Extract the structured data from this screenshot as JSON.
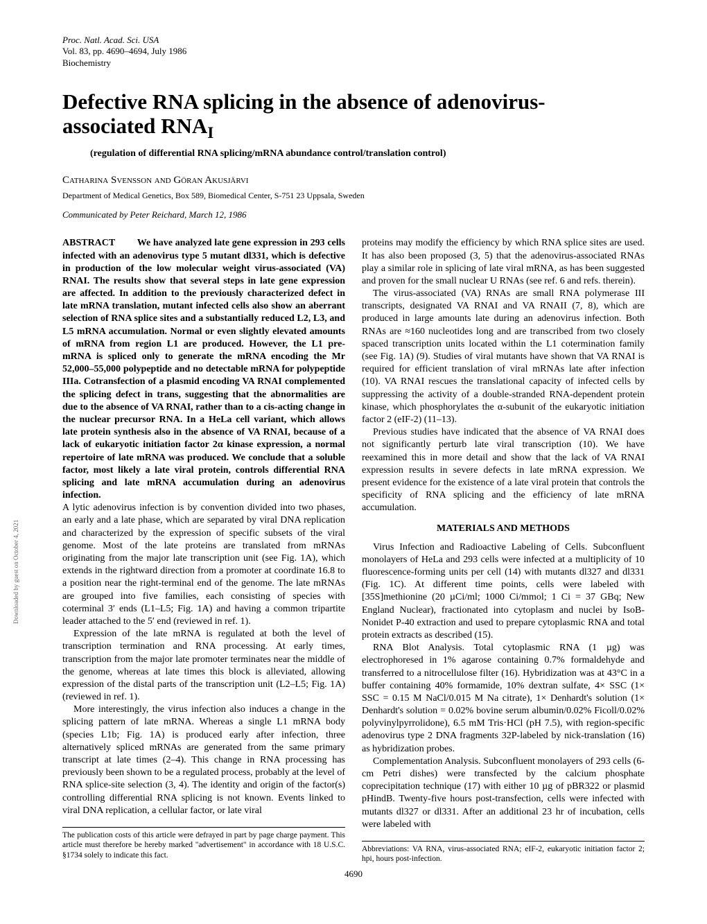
{
  "header": {
    "line1": "Proc. Natl. Acad. Sci. USA",
    "line2": "Vol. 83, pp. 4690–4694, July 1986",
    "line3": "Biochemistry"
  },
  "title_line1": "Defective RNA splicing in the absence of adenovirus-",
  "title_line2": "associated RNA",
  "title_subscript": "I",
  "subtitle": "(regulation of differential RNA splicing/mRNA abundance control/translation control)",
  "authors": "Catharina Svensson and Göran Akusjärvi",
  "affiliation": "Department of Medical Genetics, Box 589, Biomedical Center, S-751 23 Uppsala, Sweden",
  "communicated": "Communicated by Peter Reichard, March 12, 1986",
  "abstract_label": "ABSTRACT",
  "abstract_text": "We have analyzed late gene expression in 293 cells infected with an adenovirus type 5 mutant dl331, which is defective in production of the low molecular weight virus-associated (VA) RNAI. The results show that several steps in late gene expression are affected. In addition to the previously characterized defect in late mRNA translation, mutant infected cells also show an aberrant selection of RNA splice sites and a substantially reduced L2, L3, and L5 mRNA accumulation. Normal or even slightly elevated amounts of mRNA from region L1 are produced. However, the L1 pre-mRNA is spliced only to generate the mRNA encoding the Mr 52,000–55,000 polypeptide and no detectable mRNA for polypeptide IIIa. Cotransfection of a plasmid encoding VA RNAI complemented the splicing defect in trans, suggesting that the abnormalities are due to the absence of VA RNAI, rather than to a cis-acting change in the nuclear precursor RNA. In a HeLa cell variant, which allows late protein synthesis also in the absence of VA RNAI, because of a lack of eukaryotic initiation factor 2α kinase expression, a normal repertoire of late mRNA was produced. We conclude that a soluble factor, most likely a late viral protein, controls differential RNA splicing and late mRNA accumulation during an adenovirus infection.",
  "col1_paras": [
    "A lytic adenovirus infection is by convention divided into two phases, an early and a late phase, which are separated by viral DNA replication and characterized by the expression of specific subsets of the viral genome. Most of the late proteins are translated from mRNAs originating from the major late transcription unit (see Fig. 1A), which extends in the rightward direction from a promoter at coordinate 16.8 to a position near the right-terminal end of the genome. The late mRNAs are grouped into five families, each consisting of species with coterminal 3′ ends (L1–L5; Fig. 1A) and having a common tripartite leader attached to the 5′ end (reviewed in ref. 1).",
    "Expression of the late mRNA is regulated at both the level of transcription termination and RNA processing. At early times, transcription from the major late promoter terminates near the middle of the genome, whereas at late times this block is alleviated, allowing expression of the distal parts of the transcription unit (L2–L5; Fig. 1A) (reviewed in ref. 1).",
    "More interestingly, the virus infection also induces a change in the splicing pattern of late mRNA. Whereas a single L1 mRNA body (species L1b; Fig. 1A) is produced early after infection, three alternatively spliced mRNAs are generated from the same primary transcript at late times (2–4). This change in RNA processing has previously been shown to be a regulated process, probably at the level of RNA splice-site selection (3, 4). The identity and origin of the factor(s) controlling differential RNA splicing is not known. Events linked to viral DNA replication, a cellular factor, or late viral"
  ],
  "col1_footnote": "The publication costs of this article were defrayed in part by page charge payment. This article must therefore be hereby marked \"advertisement\" in accordance with 18 U.S.C. §1734 solely to indicate this fact.",
  "col2_intro_paras": [
    "proteins may modify the efficiency by which RNA splice sites are used. It has also been proposed (3, 5) that the adenovirus-associated RNAs play a similar role in splicing of late viral mRNA, as has been suggested and proven for the small nuclear U RNAs (see ref. 6 and refs. therein).",
    "The virus-associated (VA) RNAs are small RNA polymerase III transcripts, designated VA RNAI and VA RNAII (7, 8), which are produced in large amounts late during an adenovirus infection. Both RNAs are ≈160 nucleotides long and are transcribed from two closely spaced transcription units located within the L1 cotermination family (see Fig. 1A) (9). Studies of viral mutants have shown that VA RNAI is required for efficient translation of viral mRNAs late after infection (10). VA RNAI rescues the translational capacity of infected cells by suppressing the activity of a double-stranded RNA-dependent protein kinase, which phosphorylates the α-subunit of the eukaryotic initiation factor 2 (eIF-2) (11–13).",
    "Previous studies have indicated that the absence of VA RNAI does not significantly perturb late viral transcription (10). We have reexamined this in more detail and show that the lack of VA RNAI expression results in severe defects in late mRNA expression. We present evidence for the existence of a late viral protein that controls the specificity of RNA splicing and the efficiency of late mRNA accumulation."
  ],
  "section_materials": "MATERIALS AND METHODS",
  "col2_methods_paras": [
    "Virus Infection and Radioactive Labeling of Cells. Subconfluent monolayers of HeLa and 293 cells were infected at a multiplicity of 10 fluorescence-forming units per cell (14) with mutants dl327 and dl331 (Fig. 1C). At different time points, cells were labeled with [35S]methionine (20 µCi/ml; 1000 Ci/mmol; 1 Ci = 37 GBq; New England Nuclear), fractionated into cytoplasm and nuclei by IsoB-Nonidet P-40 extraction and used to prepare cytoplasmic RNA and total protein extracts as described (15).",
    "RNA Blot Analysis. Total cytoplasmic RNA (1 µg) was electrophoresed in 1% agarose containing 0.7% formaldehyde and transferred to a nitrocellulose filter (16). Hybridization was at 43°C in a buffer containing 40% formamide, 10% dextran sulfate, 4× SSC (1× SSC = 0.15 M NaCl/0.015 M Na citrate), 1× Denhardt's solution (1× Denhardt's solution = 0.02% bovine serum albumin/0.02% Ficoll/0.02% polyvinylpyrrolidone), 6.5 mM Tris·HCl (pH 7.5), with region-specific adenovirus type 2 DNA fragments 32P-labeled by nick-translation (16) as hybridization probes.",
    "Complementation Analysis. Subconfluent monolayers of 293 cells (6-cm Petri dishes) were transfected by the calcium phosphate coprecipitation technique (17) with either 10 µg of pBR322 or plasmid pHindB. Twenty-five hours post-transfection, cells were infected with mutants dl327 or dl331. After an additional 23 hr of incubation, cells were labeled with"
  ],
  "col2_footnote": "Abbreviations: VA RNA, virus-associated RNA; eIF-2, eukaryotic initiation factor 2; hpi, hours post-infection.",
  "page_number": "4690",
  "side_text": "Downloaded by guest on October 4, 2021"
}
